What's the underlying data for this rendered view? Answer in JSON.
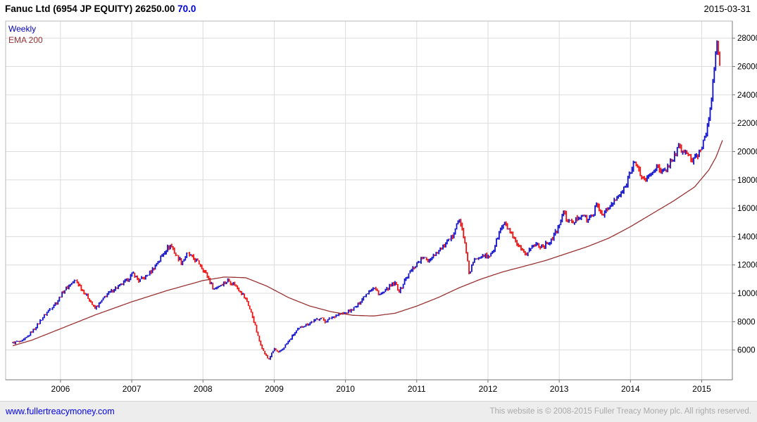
{
  "header": {
    "title": "Fanuc Ltd (6954 JP EQUITY) 26250.00",
    "last_value": "70.0",
    "date": "2015-03-31"
  },
  "legend": {
    "series": "Weekly",
    "ema": "EMA 200"
  },
  "footer": {
    "link": "www.fullertreacymoney.com",
    "copyright": "This website is © 2008-2015 Fuller Treacy Money plc. All rights reserved."
  },
  "colors": {
    "up": "#1111cc",
    "down": "#ee1111",
    "ema": "#993333",
    "grid": "#dcdcdc",
    "border": "#b8b8b8",
    "axis": "#777777",
    "axis_text": "#000000"
  },
  "chart_data": {
    "type": "candlestick",
    "title": "Fanuc Ltd (6954 JP EQUITY)",
    "interval": "Weekly",
    "overlay": "EMA 200",
    "last_close": 26250.0,
    "last_indicator": 70.0,
    "date": "2015-03-31",
    "x_ticks": [
      2006,
      2007,
      2008,
      2009,
      2010,
      2011,
      2012,
      2013,
      2014,
      2015
    ],
    "y_ticks": [
      6000,
      8000,
      10000,
      12000,
      14000,
      16000,
      18000,
      20000,
      22000,
      24000,
      26000,
      28000
    ],
    "xlim": [
      2005.23,
      2015.43
    ],
    "ylim": [
      3900,
      29200
    ],
    "grid": true,
    "legend_position": "top-left",
    "close_points": [
      [
        2005.33,
        6500
      ],
      [
        2005.4,
        6600
      ],
      [
        2005.45,
        6550
      ],
      [
        2005.55,
        7000
      ],
      [
        2005.65,
        7600
      ],
      [
        2005.75,
        8300
      ],
      [
        2005.85,
        8900
      ],
      [
        2005.95,
        9400
      ],
      [
        2006.05,
        10200
      ],
      [
        2006.15,
        10700
      ],
      [
        2006.22,
        10900
      ],
      [
        2006.3,
        10300
      ],
      [
        2006.4,
        9600
      ],
      [
        2006.48,
        8900
      ],
      [
        2006.55,
        9300
      ],
      [
        2006.65,
        9900
      ],
      [
        2006.75,
        10300
      ],
      [
        2006.85,
        10600
      ],
      [
        2006.95,
        11000
      ],
      [
        2007.02,
        11400
      ],
      [
        2007.1,
        10900
      ],
      [
        2007.18,
        11100
      ],
      [
        2007.28,
        11600
      ],
      [
        2007.38,
        12300
      ],
      [
        2007.48,
        13100
      ],
      [
        2007.55,
        13400
      ],
      [
        2007.62,
        12700
      ],
      [
        2007.7,
        12200
      ],
      [
        2007.78,
        12800
      ],
      [
        2007.85,
        12500
      ],
      [
        2007.95,
        12100
      ],
      [
        2008.05,
        11300
      ],
      [
        2008.15,
        10300
      ],
      [
        2008.25,
        10600
      ],
      [
        2008.35,
        10900
      ],
      [
        2008.45,
        10600
      ],
      [
        2008.55,
        10000
      ],
      [
        2008.62,
        9400
      ],
      [
        2008.7,
        8300
      ],
      [
        2008.78,
        6800
      ],
      [
        2008.85,
        5900
      ],
      [
        2008.92,
        5300
      ],
      [
        2009.0,
        6100
      ],
      [
        2009.06,
        5800
      ],
      [
        2009.12,
        6100
      ],
      [
        2009.2,
        6600
      ],
      [
        2009.3,
        7300
      ],
      [
        2009.4,
        7700
      ],
      [
        2009.5,
        7900
      ],
      [
        2009.58,
        8100
      ],
      [
        2009.65,
        8300
      ],
      [
        2009.72,
        8000
      ],
      [
        2009.8,
        8300
      ],
      [
        2009.9,
        8500
      ],
      [
        2010.0,
        8600
      ],
      [
        2010.08,
        8800
      ],
      [
        2010.16,
        9100
      ],
      [
        2010.25,
        9700
      ],
      [
        2010.33,
        10200
      ],
      [
        2010.4,
        10400
      ],
      [
        2010.48,
        9900
      ],
      [
        2010.55,
        10100
      ],
      [
        2010.62,
        10500
      ],
      [
        2010.7,
        10700
      ],
      [
        2010.76,
        10100
      ],
      [
        2010.83,
        10900
      ],
      [
        2010.91,
        11500
      ],
      [
        2011.0,
        12100
      ],
      [
        2011.08,
        12500
      ],
      [
        2011.16,
        12300
      ],
      [
        2011.25,
        12800
      ],
      [
        2011.33,
        13100
      ],
      [
        2011.42,
        13500
      ],
      [
        2011.5,
        14000
      ],
      [
        2011.55,
        14900
      ],
      [
        2011.6,
        15100
      ],
      [
        2011.65,
        14300
      ],
      [
        2011.7,
        12600
      ],
      [
        2011.74,
        11300
      ],
      [
        2011.78,
        12100
      ],
      [
        2011.85,
        12500
      ],
      [
        2011.92,
        12800
      ],
      [
        2012.0,
        12500
      ],
      [
        2012.08,
        13100
      ],
      [
        2012.15,
        14200
      ],
      [
        2012.22,
        14900
      ],
      [
        2012.28,
        14600
      ],
      [
        2012.35,
        13900
      ],
      [
        2012.45,
        13100
      ],
      [
        2012.52,
        12700
      ],
      [
        2012.6,
        13200
      ],
      [
        2012.68,
        13500
      ],
      [
        2012.76,
        13300
      ],
      [
        2012.85,
        13600
      ],
      [
        2012.92,
        14000
      ],
      [
        2013.0,
        14700
      ],
      [
        2013.05,
        15800
      ],
      [
        2013.1,
        15300
      ],
      [
        2013.18,
        14900
      ],
      [
        2013.25,
        15300
      ],
      [
        2013.33,
        15600
      ],
      [
        2013.4,
        15100
      ],
      [
        2013.48,
        15700
      ],
      [
        2013.53,
        16200
      ],
      [
        2013.6,
        15600
      ],
      [
        2013.68,
        15900
      ],
      [
        2013.76,
        16400
      ],
      [
        2013.85,
        16900
      ],
      [
        2013.93,
        17500
      ],
      [
        2014.0,
        18700
      ],
      [
        2014.05,
        19300
      ],
      [
        2014.12,
        18600
      ],
      [
        2014.2,
        17900
      ],
      [
        2014.28,
        18400
      ],
      [
        2014.36,
        19000
      ],
      [
        2014.44,
        18400
      ],
      [
        2014.52,
        18900
      ],
      [
        2014.6,
        19600
      ],
      [
        2014.68,
        20300
      ],
      [
        2014.74,
        20000
      ],
      [
        2014.8,
        19900
      ],
      [
        2014.87,
        19300
      ],
      [
        2014.94,
        19700
      ],
      [
        2015.0,
        20400
      ],
      [
        2015.06,
        21300
      ],
      [
        2015.1,
        22600
      ],
      [
        2015.14,
        24000
      ],
      [
        2015.18,
        26000
      ],
      [
        2015.21,
        27600
      ],
      [
        2015.24,
        26800
      ],
      [
        2015.27,
        26250
      ]
    ],
    "ema_points": [
      [
        2005.33,
        6300
      ],
      [
        2005.6,
        6700
      ],
      [
        2006.0,
        7500
      ],
      [
        2006.5,
        8500
      ],
      [
        2007.0,
        9400
      ],
      [
        2007.5,
        10200
      ],
      [
        2008.0,
        10900
      ],
      [
        2008.3,
        11150
      ],
      [
        2008.6,
        11100
      ],
      [
        2008.9,
        10500
      ],
      [
        2009.2,
        9700
      ],
      [
        2009.5,
        9100
      ],
      [
        2009.8,
        8700
      ],
      [
        2010.1,
        8450
      ],
      [
        2010.4,
        8400
      ],
      [
        2010.7,
        8600
      ],
      [
        2011.0,
        9100
      ],
      [
        2011.3,
        9700
      ],
      [
        2011.6,
        10400
      ],
      [
        2011.9,
        11000
      ],
      [
        2012.2,
        11500
      ],
      [
        2012.5,
        11900
      ],
      [
        2012.8,
        12300
      ],
      [
        2013.1,
        12800
      ],
      [
        2013.4,
        13300
      ],
      [
        2013.7,
        13900
      ],
      [
        2014.0,
        14700
      ],
      [
        2014.3,
        15600
      ],
      [
        2014.6,
        16500
      ],
      [
        2014.9,
        17500
      ],
      [
        2015.1,
        18700
      ],
      [
        2015.2,
        19600
      ],
      [
        2015.3,
        20900
      ]
    ]
  }
}
